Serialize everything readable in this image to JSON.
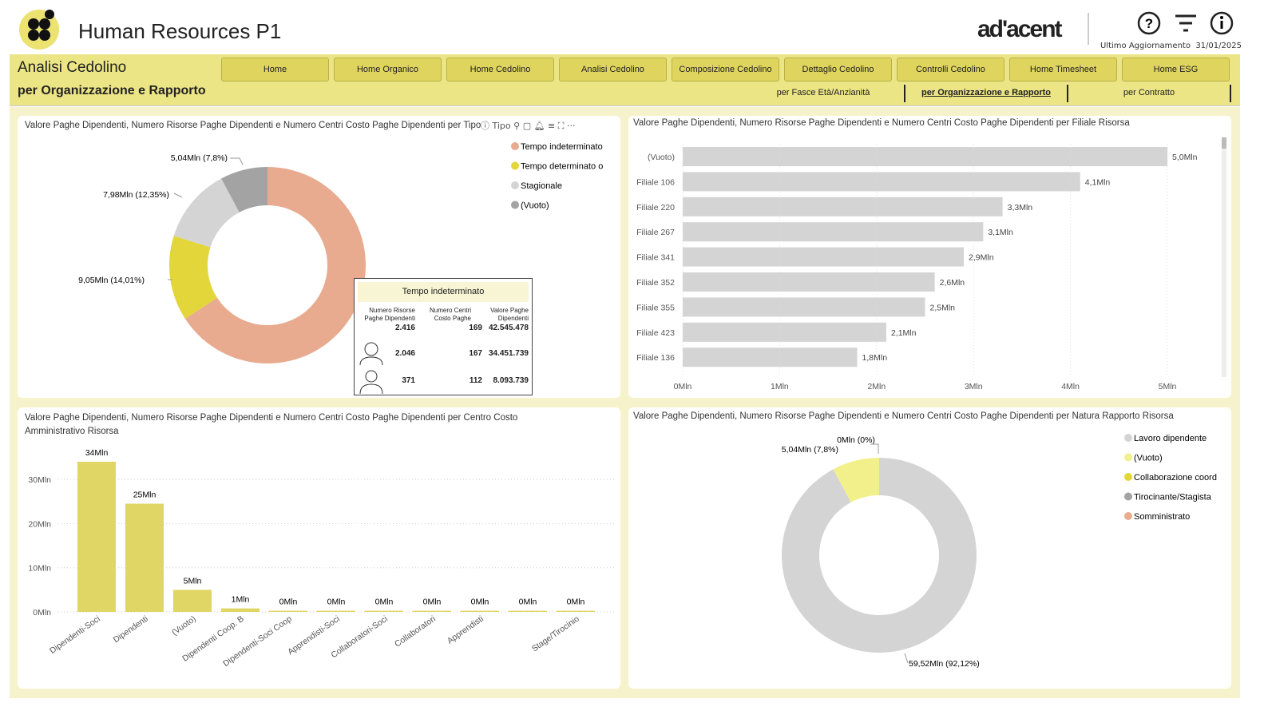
{
  "header": {
    "title": "Human Resources P1",
    "brand": "ad'acent",
    "last_update_label": "Ultimo Aggiornamento",
    "last_update": "31/01/2025",
    "icons": [
      "help-icon",
      "filter-icon",
      "info-icon"
    ]
  },
  "page": {
    "title": "Analisi Cedolino",
    "subtitle": "per Organizzazione e Rapporto"
  },
  "nav": [
    "Home",
    "Home Organico",
    "Home Cedolino",
    "Analisi Cedolino",
    "Composizione Cedolino",
    "Dettaglio Cedolino",
    "Controlli Cedolino",
    "Home Timesheet",
    "Home ESG"
  ],
  "subtabs": [
    {
      "label": "per Fasce Età/Anzianità",
      "active": false
    },
    {
      "label": "per Organizzazione e Rapporto",
      "active": true
    },
    {
      "label": "per Contratto",
      "active": false
    }
  ],
  "visual_header_text": "Tipo",
  "tooltip": {
    "title": "Tempo indeterminato",
    "headers": [
      "Numero Risorse Paghe Dipendenti",
      "Numero Centri Costo Paghe",
      "Valore Paghe Dipendenti"
    ],
    "rows": [
      [
        "2.416",
        "169",
        "42.545.478"
      ],
      [
        "2.046",
        "167",
        "34.451.739"
      ],
      [
        "371",
        "112",
        "8.093.739"
      ]
    ],
    "row_icons": [
      "",
      "female-person-icon",
      "male-person-icon"
    ]
  },
  "chart_data": [
    {
      "type": "pie",
      "donut": true,
      "title": "Valore Paghe Dipendenti, Numero Risorse Paghe Dipendenti e Numero Centri Costo Paghe Dipendenti per Tipo",
      "legend": "top-right",
      "slices": [
        {
          "name": "Tempo indeterminato",
          "value": 42.55,
          "label": "",
          "color": "#e8ab8f"
        },
        {
          "name": "Tempo determinato o",
          "value": 9.05,
          "label": "9,05Mln (14,01%)",
          "color": "#e3d63a"
        },
        {
          "name": "Stagionale",
          "value": 7.98,
          "label": "7,98Mln (12,35%)",
          "color": "#d4d4d4"
        },
        {
          "name": "(Vuoto)",
          "value": 5.04,
          "label": "5,04Mln (7,8%)",
          "color": "#a3a3a3"
        }
      ]
    },
    {
      "type": "bar",
      "orientation": "horizontal",
      "title": "Valore Paghe Dipendenti, Numero Risorse Paghe Dipendenti e Numero Centri Costo Paghe Dipendenti per Filiale Risorsa",
      "categories": [
        "(Vuoto)",
        "Filiale 106",
        "Filiale 220",
        "Filiale 267",
        "Filiale 341",
        "Filiale 352",
        "Filiale 355",
        "Filiale 423",
        "Filiale 136"
      ],
      "values": [
        5.0,
        4.1,
        3.3,
        3.1,
        2.9,
        2.6,
        2.5,
        2.1,
        1.8
      ],
      "labels": [
        "5,0Mln",
        "4,1Mln",
        "3,3Mln",
        "3,1Mln",
        "2,9Mln",
        "2,6Mln",
        "2,5Mln",
        "2,1Mln",
        "1,8Mln"
      ],
      "xlim": [
        0,
        5
      ],
      "xticks": [
        "0Mln",
        "1Mln",
        "2Mln",
        "3Mln",
        "4Mln",
        "5Mln"
      ],
      "color": "#d4d4d4"
    },
    {
      "type": "bar",
      "title": "Valore Paghe Dipendenti, Numero Risorse Paghe Dipendenti e Numero Centri Costo Paghe Dipendenti per Centro Costo Amministrativo Risorsa",
      "categories": [
        "Dipendenti-Soci",
        "Dipendenti",
        "(Vuoto)",
        "Dipendenti Coop. B",
        "Dipendenti-Soci Coop",
        "Apprendisti-Soci",
        "Collaboratori-Soci",
        "Collaboratori",
        "Apprendisti",
        "",
        "Stage/Tirocinio"
      ],
      "values": [
        34,
        24.5,
        5,
        0.8,
        0.2,
        0.2,
        0.2,
        0.2,
        0.2,
        0.2,
        0.2
      ],
      "labels": [
        "34Mln",
        "25Mln",
        "5Mln",
        "1Mln",
        "0Mln",
        "0Mln",
        "0Mln",
        "0Mln",
        "0Mln",
        "0Mln",
        "0Mln"
      ],
      "ylim": [
        0,
        34
      ],
      "yticks": [
        "0Mln",
        "10Mln",
        "20Mln",
        "30Mln"
      ],
      "grid": true,
      "color": "#e0d666"
    },
    {
      "type": "pie",
      "donut": true,
      "title": "Valore Paghe Dipendenti, Numero Risorse Paghe Dipendenti e Numero Centri Costo Paghe Dipendenti per Natura Rapporto Risorsa",
      "legend": "top-right",
      "slices": [
        {
          "name": "Lavoro dipendente",
          "value": 59.52,
          "label": "59,52Mln (92,12%)",
          "color": "#d4d4d4"
        },
        {
          "name": "(Vuoto)",
          "value": 5.04,
          "label": "5,04Mln (7,8%)",
          "color": "#f1f08a"
        },
        {
          "name": "Collaborazione coord",
          "value": 0.0,
          "label": "0Mln (0%)",
          "color": "#e3d63a"
        },
        {
          "name": "Tirocinante/Stagista",
          "value": 0.0,
          "label": "",
          "color": "#a3a3a3"
        },
        {
          "name": "Somministrato",
          "value": 0.0,
          "label": "",
          "color": "#e8ab8f"
        }
      ]
    }
  ]
}
